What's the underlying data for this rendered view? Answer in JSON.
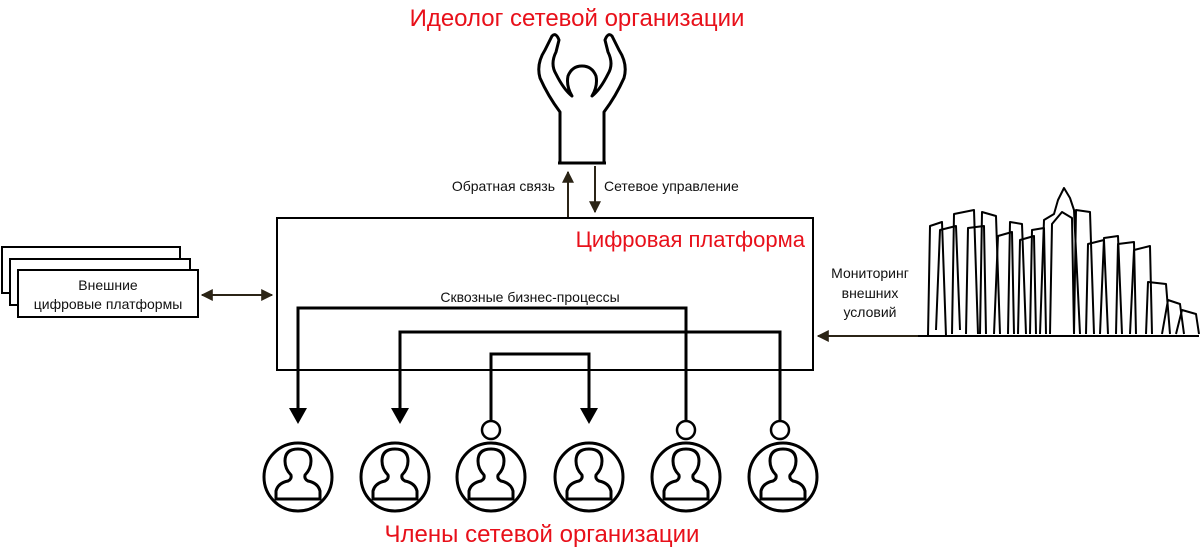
{
  "title_ideologist": "Идеолог сетевой организации",
  "feedback_label": "Обратная связь",
  "network_management_label": "Сетевое управление",
  "platform_title": "Цифровая платформа",
  "business_processes_label": "Сквозные бизнес-процессы",
  "external_platforms": {
    "line1": "Внешние",
    "line2": "цифровые платформы"
  },
  "monitoring": {
    "line1": "Мониторинг",
    "line2": "внешних",
    "line3": "условий"
  },
  "members_title": "Члены сетевой организации",
  "colors": {
    "accent_red": "#e8101a",
    "line": "#000000",
    "arrow_dark": "#2b2416"
  }
}
